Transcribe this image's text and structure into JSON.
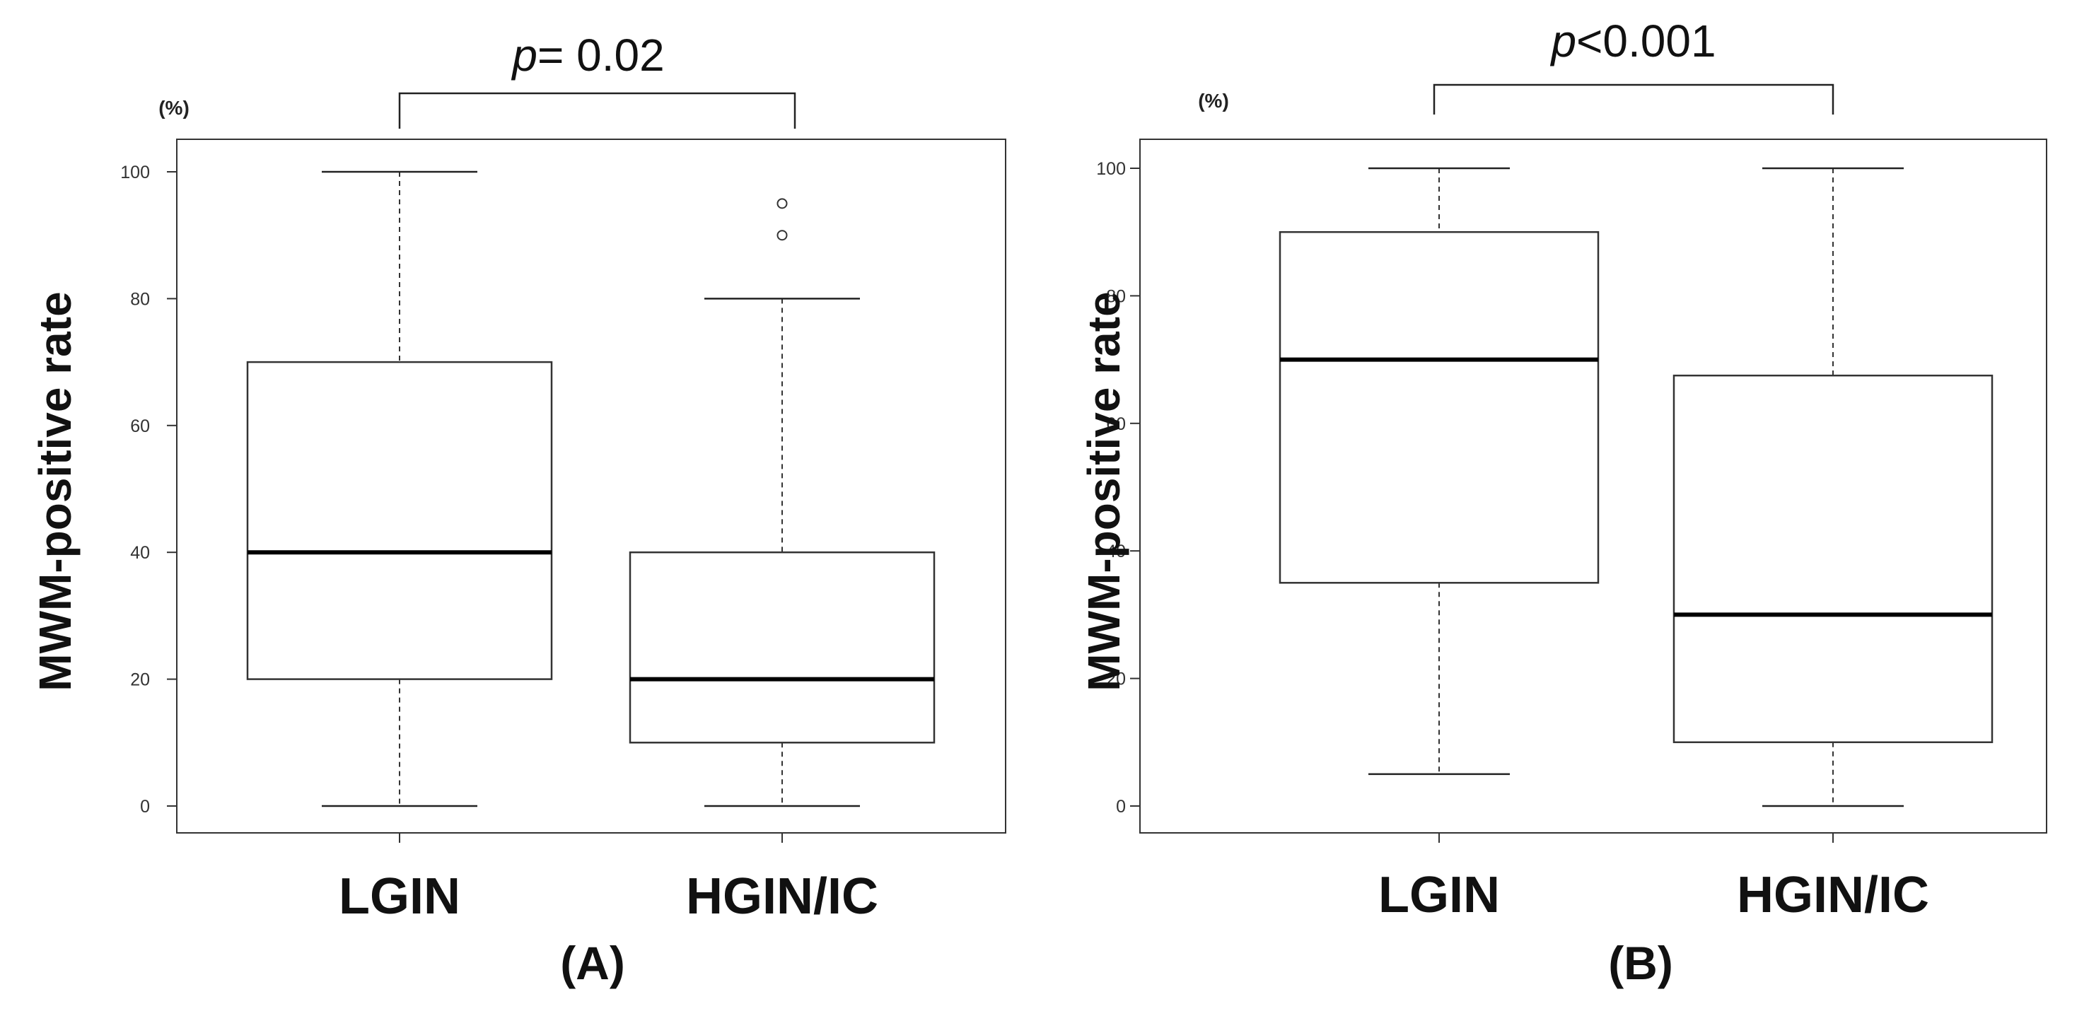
{
  "chart_data": [
    {
      "type": "box",
      "panel_label": "(A)",
      "p_symbol": "p",
      "p_text": "= 0.02",
      "unit": "(%)",
      "ylabel": "MWM-positive rate",
      "ylim": [
        0,
        100
      ],
      "yticks": [
        0,
        20,
        40,
        60,
        80,
        100
      ],
      "categories": [
        "LGIN",
        "HGIN/IC"
      ],
      "boxes": [
        {
          "category": "LGIN",
          "whisker_low": 0,
          "q1": 20,
          "median": 40,
          "q3": 70,
          "whisker_high": 100,
          "outliers": []
        },
        {
          "category": "HGIN/IC",
          "whisker_low": 0,
          "q1": 10,
          "median": 20,
          "q3": 40,
          "whisker_high": 80,
          "outliers": [
            90,
            95
          ]
        }
      ]
    },
    {
      "type": "box",
      "panel_label": "(B)",
      "p_symbol": "p",
      "p_text": "<0.001",
      "unit": "(%)",
      "ylabel": "MWM-positive rate",
      "ylim": [
        0,
        100
      ],
      "yticks": [
        0,
        20,
        40,
        60,
        80,
        100
      ],
      "categories": [
        "LGIN",
        "HGIN/IC"
      ],
      "boxes": [
        {
          "category": "LGIN",
          "whisker_low": 5,
          "q1": 35,
          "median": 70,
          "q3": 90,
          "whisker_high": 100,
          "outliers": []
        },
        {
          "category": "HGIN/IC",
          "whisker_low": 0,
          "q1": 10,
          "median": 30,
          "q3": 67.5,
          "whisker_high": 100,
          "outliers": []
        }
      ]
    }
  ]
}
